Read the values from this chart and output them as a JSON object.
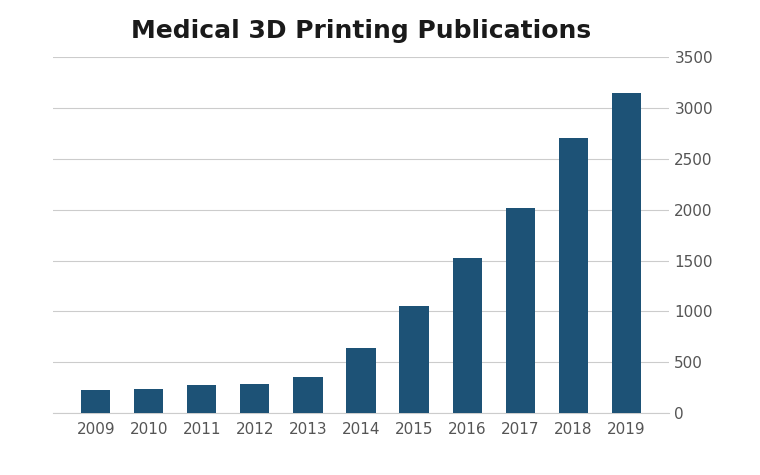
{
  "title": "Medical 3D Printing Publications",
  "years": [
    "2009",
    "2010",
    "2011",
    "2012",
    "2013",
    "2014",
    "2015",
    "2016",
    "2017",
    "2018",
    "2019"
  ],
  "values": [
    230,
    235,
    280,
    290,
    360,
    640,
    1050,
    1530,
    2020,
    2700,
    3150
  ],
  "bar_color": "#1d5276",
  "background_color": "#ffffff",
  "ylim": [
    0,
    3500
  ],
  "yticks": [
    0,
    500,
    1000,
    1500,
    2000,
    2500,
    3000,
    3500
  ],
  "title_fontsize": 18,
  "tick_fontsize": 11,
  "bar_width": 0.55
}
